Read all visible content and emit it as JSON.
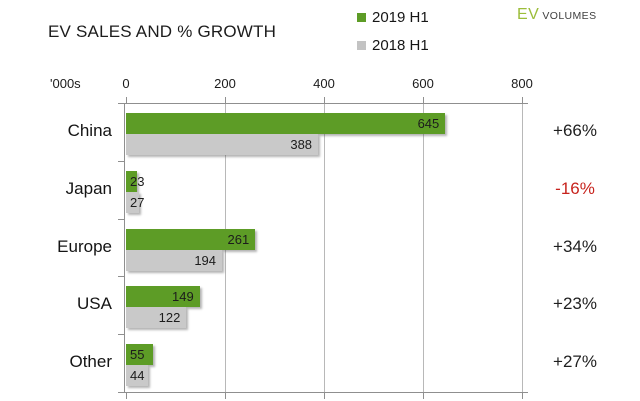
{
  "header": {
    "title": "EV SALES AND % GROWTH"
  },
  "legend": {
    "items": [
      {
        "label": "2019 H1",
        "color": "#5d9c26"
      },
      {
        "label": "2018 H1",
        "color": "#c3c3c3"
      }
    ]
  },
  "logo": {
    "ev": "EV",
    "volumes": "VOLUMES",
    "ev_color": "#9cbd3a",
    "volumes_color": "#3f3f3f"
  },
  "axis": {
    "unit_label": "'000s"
  },
  "chart_data": {
    "type": "bar",
    "orientation": "horizontal",
    "title": "EV SALES AND % GROWTH",
    "xlabel": "'000s",
    "xlim": [
      0,
      800
    ],
    "x_ticks": [
      0,
      200,
      400,
      600,
      800
    ],
    "grid": true,
    "legend_position": "top-right",
    "categories": [
      "China",
      "Japan",
      "Europe",
      "USA",
      "Other"
    ],
    "series": [
      {
        "name": "2019 H1",
        "color": "#5d9c26",
        "values": [
          645,
          23,
          261,
          149,
          55
        ]
      },
      {
        "name": "2018 H1",
        "color": "#c9c9c9",
        "values": [
          388,
          27,
          194,
          122,
          44
        ]
      }
    ],
    "growth_labels": [
      {
        "label": "+66%",
        "color": "#1f1f1f"
      },
      {
        "label": "-16%",
        "color": "#c7231d"
      },
      {
        "label": "+34%",
        "color": "#1f1f1f"
      },
      {
        "label": "+23%",
        "color": "#1f1f1f"
      },
      {
        "label": "+27%",
        "color": "#1f1f1f"
      }
    ],
    "value_label_color": "#1c1c1c"
  }
}
